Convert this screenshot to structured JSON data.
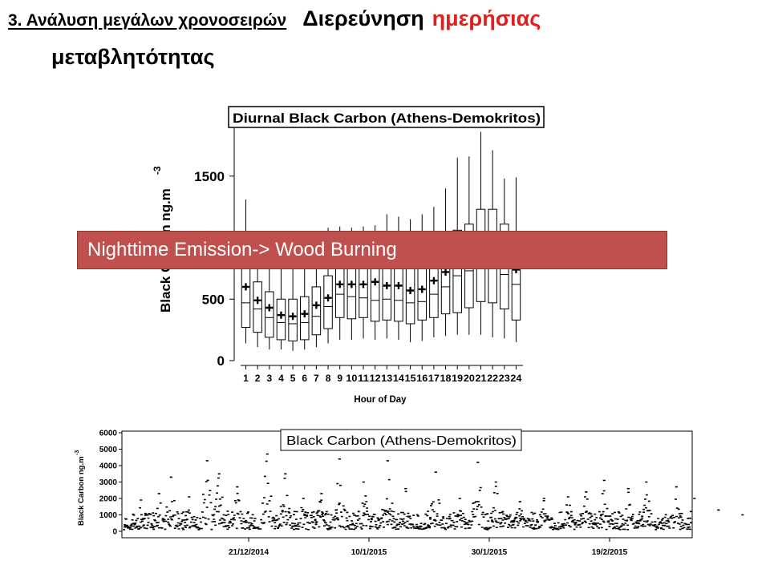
{
  "slide": {
    "section_label": "3. Ανάλυση μεγάλων χρονοσειρών",
    "heading_part1": "Διερεύνηση",
    "heading_accent": "ημερήσιας",
    "heading_part2": "μεταβλητότητας",
    "banner_text": "Nighttime Emission-> Wood Burning"
  },
  "colors": {
    "accent_text": "#e0201e",
    "banner_fill": "#c0504d"
  },
  "chart_data": [
    {
      "type": "box",
      "title": "Diurnal Black Carbon (Athens-Demokritos)",
      "xlabel": "Hour of Day",
      "ylabel": "Black Carbon ng.m",
      "ylabel_superscript": "-3",
      "ylim": [
        0,
        1800
      ],
      "yticks": [
        0,
        500,
        1500
      ],
      "categories": [
        "1",
        "2",
        "3",
        "4",
        "5",
        "6",
        "7",
        "8",
        "9",
        "10",
        "11",
        "12",
        "13",
        "14",
        "15",
        "16",
        "17",
        "18",
        "19",
        "20",
        "21",
        "22",
        "23",
        "24"
      ],
      "series": [
        {
          "whisker_low": [
            140,
            110,
            90,
            90,
            80,
            90,
            110,
            140,
            170,
            170,
            180,
            170,
            180,
            170,
            150,
            160,
            190,
            200,
            210,
            210,
            210,
            190,
            180,
            150
          ],
          "q1": [
            270,
            230,
            190,
            170,
            160,
            170,
            210,
            260,
            350,
            340,
            350,
            320,
            330,
            320,
            300,
            330,
            350,
            380,
            390,
            430,
            480,
            470,
            420,
            330
          ],
          "median": [
            470,
            420,
            350,
            310,
            300,
            310,
            360,
            440,
            540,
            520,
            510,
            490,
            500,
            490,
            470,
            480,
            540,
            600,
            690,
            730,
            750,
            760,
            700,
            620
          ],
          "mean": [
            600,
            490,
            430,
            370,
            360,
            380,
            450,
            510,
            620,
            620,
            620,
            640,
            610,
            610,
            570,
            580,
            650,
            720,
            850,
            900,
            940,
            950,
            860,
            740
          ],
          "q3": [
            840,
            640,
            560,
            500,
            500,
            520,
            600,
            690,
            770,
            790,
            800,
            810,
            820,
            820,
            790,
            800,
            870,
            960,
            1060,
            1110,
            1230,
            1230,
            1110,
            930
          ],
          "whisker_high": [
            1310,
            1030,
            900,
            880,
            900,
            940,
            1030,
            1080,
            1090,
            1080,
            1090,
            1100,
            1190,
            1170,
            1150,
            1190,
            1250,
            1400,
            1650,
            1660,
            1860,
            1710,
            1480,
            1490
          ]
        }
      ],
      "grid": false,
      "legend": "none"
    },
    {
      "type": "scatter",
      "title": "Black Carbon (Athens-Demokritos)",
      "xlabel": "",
      "ylabel": "Black Carbon ng.m",
      "ylabel_superscript": "-3",
      "ylim": [
        0,
        6000
      ],
      "yticks": [
        0,
        1000,
        2000,
        3000,
        4000,
        5000,
        6000
      ],
      "x_range": [
        "2014-12-01",
        "2015-03-15"
      ],
      "x_tick_labels": [
        {
          "date": "2014-12-21",
          "label": "21/12/2014"
        },
        {
          "date": "2015-01-10",
          "label": "10/1/2015"
        },
        {
          "date": "2015-01-30",
          "label": "30/1/2015"
        },
        {
          "date": "2015-02-19",
          "label": "19/2/2015"
        }
      ],
      "peaks": [
        {
          "date": "2014-12-03",
          "value": 1900
        },
        {
          "date": "2014-12-06",
          "value": 2300
        },
        {
          "date": "2014-12-08",
          "value": 3300
        },
        {
          "date": "2014-12-11",
          "value": 2100
        },
        {
          "date": "2014-12-14",
          "value": 4300
        },
        {
          "date": "2014-12-16",
          "value": 3500
        },
        {
          "date": "2014-12-19",
          "value": 2700
        },
        {
          "date": "2014-12-24",
          "value": 4700
        },
        {
          "date": "2014-12-27",
          "value": 3500
        },
        {
          "date": "2014-12-30",
          "value": 2000
        },
        {
          "date": "2015-01-02",
          "value": 2300
        },
        {
          "date": "2015-01-05",
          "value": 4400
        },
        {
          "date": "2015-01-09",
          "value": 3000
        },
        {
          "date": "2015-01-13",
          "value": 4300
        },
        {
          "date": "2015-01-16",
          "value": 2600
        },
        {
          "date": "2015-01-21",
          "value": 3600
        },
        {
          "date": "2015-01-25",
          "value": 2000
        },
        {
          "date": "2015-01-28",
          "value": 4200
        },
        {
          "date": "2015-01-31",
          "value": 3000
        },
        {
          "date": "2015-02-04",
          "value": 1800
        },
        {
          "date": "2015-02-08",
          "value": 2000
        },
        {
          "date": "2015-02-12",
          "value": 2100
        },
        {
          "date": "2015-02-15",
          "value": 2400
        },
        {
          "date": "2015-02-18",
          "value": 3100
        },
        {
          "date": "2015-02-22",
          "value": 2600
        },
        {
          "date": "2015-02-25",
          "value": 3000
        },
        {
          "date": "2015-03-02",
          "value": 2700
        },
        {
          "date": "2015-03-05",
          "value": 2000
        },
        {
          "date": "2015-03-09",
          "value": 1300
        },
        {
          "date": "2015-03-13",
          "value": 1000
        }
      ],
      "typical_range": [
        200,
        1500
      ],
      "grid": false,
      "legend": "none"
    }
  ]
}
